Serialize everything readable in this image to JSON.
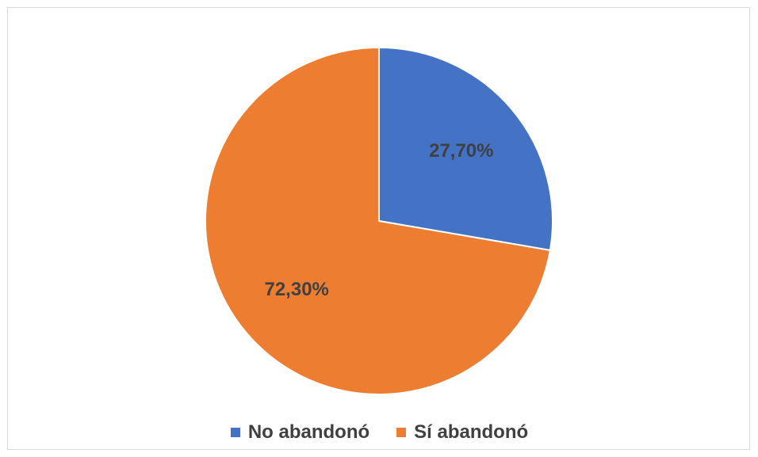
{
  "chart_data": {
    "type": "pie",
    "title": "",
    "slices": [
      {
        "name": "No abandonó",
        "value": 27.7,
        "label": "27,70%",
        "color": "#4472c4"
      },
      {
        "name": "Sí abandonó",
        "value": 72.3,
        "label": "72,30%",
        "color": "#ed7d31"
      }
    ],
    "start": "12 o'clock",
    "direction": "clockwise",
    "legend": {
      "position": "bottom",
      "entries": [
        "No abandonó",
        "Sí abandonó"
      ]
    }
  }
}
